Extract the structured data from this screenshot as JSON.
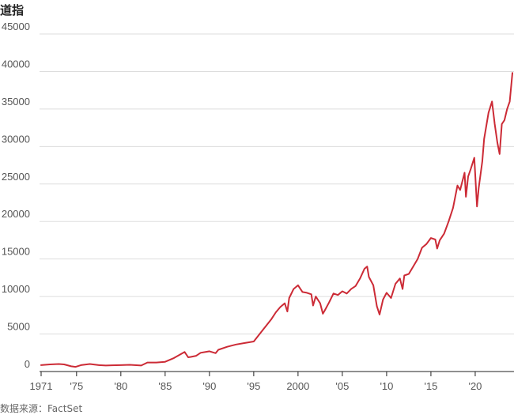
{
  "title": "道指",
  "source": "数据来源：FactSet",
  "chart_data": {
    "type": "line",
    "title": "道指",
    "xlabel": "",
    "ylabel": "",
    "xlim": [
      1971,
      2024.2
    ],
    "ylim": [
      0,
      45000
    ],
    "y_ticks": [
      0,
      5000,
      10000,
      15000,
      20000,
      25000,
      30000,
      35000,
      40000,
      45000
    ],
    "x_ticks": [
      {
        "value": 1971,
        "label": "1971"
      },
      {
        "value": 1975,
        "label": "'75"
      },
      {
        "value": 1980,
        "label": "'80"
      },
      {
        "value": 1985,
        "label": "'85"
      },
      {
        "value": 1990,
        "label": "'90"
      },
      {
        "value": 1995,
        "label": "'95"
      },
      {
        "value": 2000,
        "label": "2000"
      },
      {
        "value": 2005,
        "label": "'05"
      },
      {
        "value": 2010,
        "label": "'10"
      },
      {
        "value": 2015,
        "label": "'15"
      },
      {
        "value": 2020,
        "label": "'20"
      }
    ],
    "grid": "horizontal",
    "line_color": "#cc2b36",
    "series": [
      {
        "x": [
          1971.0,
          1972.0,
          1973.0,
          1973.6,
          1974.4,
          1974.9,
          1975.5,
          1976.5,
          1977.5,
          1978.3,
          1979.0,
          1980.0,
          1981.0,
          1982.3,
          1983.0,
          1984.0,
          1985.0,
          1986.0,
          1987.2,
          1987.6,
          1987.9,
          1988.5,
          1989.0,
          1990.0,
          1990.7,
          1991.0,
          1992.0,
          1993.0,
          1994.0,
          1995.0,
          1996.0,
          1997.0,
          1997.5,
          1998.0,
          1998.5,
          1998.8,
          1999.0,
          1999.5,
          2000.0,
          2000.5,
          2001.0,
          2001.5,
          2001.7,
          2002.0,
          2002.5,
          2002.8,
          2003.0,
          2003.5,
          2004.0,
          2004.5,
          2005.0,
          2005.5,
          2006.0,
          2006.5,
          2007.0,
          2007.5,
          2007.8,
          2008.0,
          2008.5,
          2008.9,
          2009.2,
          2009.6,
          2010.0,
          2010.5,
          2011.0,
          2011.5,
          2011.8,
          2012.0,
          2012.5,
          2013.0,
          2013.5,
          2014.0,
          2014.5,
          2015.0,
          2015.5,
          2015.7,
          2016.0,
          2016.5,
          2017.0,
          2017.5,
          2018.0,
          2018.3,
          2018.8,
          2018.95,
          2019.2,
          2019.5,
          2019.9,
          2020.2,
          2020.4,
          2020.8,
          2021.0,
          2021.5,
          2021.9,
          2022.2,
          2022.5,
          2022.75,
          2023.0,
          2023.3,
          2023.6,
          2023.9,
          2024.2
        ],
        "y": [
          850,
          950,
          1000,
          950,
          700,
          620,
          850,
          1000,
          850,
          800,
          830,
          850,
          900,
          800,
          1200,
          1200,
          1300,
          1800,
          2600,
          1900,
          1950,
          2100,
          2500,
          2700,
          2450,
          2900,
          3300,
          3600,
          3800,
          4000,
          5500,
          7000,
          7900,
          8600,
          9100,
          8000,
          9800,
          11000,
          11500,
          10600,
          10500,
          10300,
          8800,
          10000,
          9100,
          7700,
          8100,
          9200,
          10400,
          10200,
          10700,
          10400,
          11000,
          11400,
          12400,
          13700,
          14000,
          12600,
          11500,
          8700,
          7600,
          9600,
          10500,
          9800,
          11700,
          12400,
          11000,
          12800,
          13000,
          14000,
          15000,
          16500,
          17000,
          17800,
          17600,
          16400,
          17500,
          18400,
          20000,
          21800,
          24800,
          24200,
          26500,
          23300,
          26000,
          27000,
          28500,
          22000,
          24500,
          28000,
          31000,
          34500,
          36000,
          33000,
          30500,
          29000,
          33000,
          33500,
          35000,
          36000,
          39800
        ]
      }
    ]
  }
}
